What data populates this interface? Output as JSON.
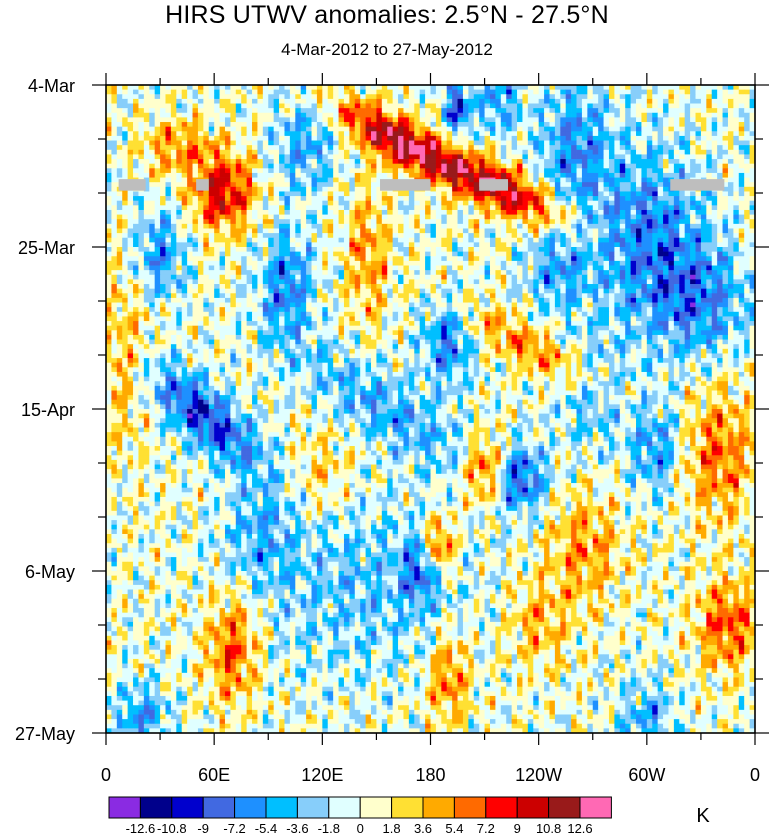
{
  "chart_data": {
    "type": "heatmap",
    "title": "HIRS UTWV anomalies: 2.5°N - 27.5°N",
    "subtitle": "4-Mar-2012 to 27-May-2012",
    "x_ticks": [
      "0",
      "60E",
      "120E",
      "180",
      "120W",
      "60W",
      "0"
    ],
    "x_tick_values": [
      0,
      60,
      120,
      180,
      240,
      300,
      360
    ],
    "xlim": [
      0,
      360
    ],
    "y_ticks": [
      "4-Mar",
      "25-Mar",
      "15-Apr",
      "6-May",
      "27-May"
    ],
    "y_tick_values": [
      0,
      21,
      42,
      63,
      84
    ],
    "ylim": [
      0,
      84
    ],
    "y_direction": "time increases downward",
    "units": "K",
    "colorbar": {
      "levels": [
        -12.6,
        -10.8,
        -9,
        -7.2,
        -5.4,
        -3.6,
        -1.8,
        0,
        1.8,
        3.6,
        5.4,
        7.2,
        9,
        10.8,
        12.6
      ],
      "level_labels": [
        "-12.6",
        "-10.8",
        "-9",
        "-7.2",
        "-5.4",
        "-3.6",
        "-1.8",
        "0",
        "1.8",
        "3.6",
        "5.4",
        "7.2",
        "9",
        "10.8",
        "12.6"
      ],
      "colors": [
        "#8a2be2",
        "#00008b",
        "#0000cd",
        "#4169e1",
        "#1e90ff",
        "#00bfff",
        "#87cefa",
        "#e0ffff",
        "#ffffcc",
        "#ffe033",
        "#ffaa00",
        "#ff6a00",
        "#ff0000",
        "#cc0000",
        "#991a1a",
        "#ff69b4"
      ]
    },
    "missing_color": "#bebebe",
    "features": [
      {
        "lon": 65,
        "day": 14,
        "amp": 9.5,
        "sx": 12,
        "sy": 3.5,
        "tilt": 0
      },
      {
        "lon": 40,
        "day": 8,
        "amp": 5,
        "sx": 14,
        "sy": 2.5,
        "tilt": 0
      },
      {
        "lon": 160,
        "day": 7,
        "amp": 11,
        "sx": 11,
        "sy": 2,
        "tilt": -0.55
      },
      {
        "lon": 215,
        "day": 13,
        "amp": 11.5,
        "sx": 14,
        "sy": 2,
        "tilt": -0.45
      },
      {
        "lon": 195,
        "day": 3,
        "amp": -9,
        "sx": 5,
        "sy": 2.5,
        "tilt": 0
      },
      {
        "lon": 218,
        "day": 2,
        "amp": -5.5,
        "sx": 9,
        "sy": 3,
        "tilt": 0
      },
      {
        "lon": 210,
        "day": 50,
        "amp": 8,
        "sx": 8,
        "sy": 3,
        "tilt": 0
      },
      {
        "lon": 235,
        "day": 34,
        "amp": 5.5,
        "sx": 16,
        "sy": 2,
        "tilt": -0.5
      },
      {
        "lon": 55,
        "day": 43,
        "amp": -9.5,
        "sx": 12,
        "sy": 2.5,
        "tilt": -0.8
      },
      {
        "lon": 100,
        "day": 26,
        "amp": -7,
        "sx": 10,
        "sy": 5,
        "tilt": 0
      },
      {
        "lon": 30,
        "day": 22,
        "amp": -6,
        "sx": 10,
        "sy": 4,
        "tilt": 0
      },
      {
        "lon": 300,
        "day": 20,
        "amp": -7,
        "sx": 22,
        "sy": 8,
        "tilt": 0
      },
      {
        "lon": 330,
        "day": 28,
        "amp": -6,
        "sx": 18,
        "sy": 5,
        "tilt": 0
      },
      {
        "lon": 260,
        "day": 8,
        "amp": -6,
        "sx": 14,
        "sy": 6,
        "tilt": 0
      },
      {
        "lon": 230,
        "day": 51,
        "amp": -8,
        "sx": 10,
        "sy": 3,
        "tilt": 0
      },
      {
        "lon": 190,
        "day": 33,
        "amp": -7,
        "sx": 10,
        "sy": 4,
        "tilt": 0
      },
      {
        "lon": 155,
        "day": 42,
        "amp": -5,
        "sx": 18,
        "sy": 3,
        "tilt": -0.6
      },
      {
        "lon": 185,
        "day": 60,
        "amp": 9,
        "sx": 6,
        "sy": 2.5,
        "tilt": 0
      },
      {
        "lon": 175,
        "day": 63,
        "amp": -6,
        "sx": 8,
        "sy": 3,
        "tilt": 0
      },
      {
        "lon": 140,
        "day": 65,
        "amp": -3.5,
        "sx": 40,
        "sy": 8,
        "tilt": 0
      },
      {
        "lon": 70,
        "day": 73,
        "amp": 7,
        "sx": 10,
        "sy": 5,
        "tilt": 0
      },
      {
        "lon": 190,
        "day": 77,
        "amp": 6,
        "sx": 8,
        "sy": 4,
        "tilt": 0
      },
      {
        "lon": 305,
        "day": 47,
        "amp": -6,
        "sx": 10,
        "sy": 4,
        "tilt": 0
      },
      {
        "lon": 340,
        "day": 48,
        "amp": 6,
        "sx": 14,
        "sy": 6,
        "tilt": 0
      },
      {
        "lon": 345,
        "day": 70,
        "amp": 7,
        "sx": 12,
        "sy": 4,
        "tilt": 0
      },
      {
        "lon": 300,
        "day": 82,
        "amp": -5,
        "sx": 10,
        "sy": 3,
        "tilt": 0
      },
      {
        "lon": 20,
        "day": 82,
        "amp": -6,
        "sx": 10,
        "sy": 3,
        "tilt": 0
      },
      {
        "lon": 110,
        "day": 8,
        "amp": -5,
        "sx": 12,
        "sy": 4,
        "tilt": 0
      },
      {
        "lon": 145,
        "day": 22,
        "amp": 5,
        "sx": 8,
        "sy": 6,
        "tilt": 0
      },
      {
        "lon": 265,
        "day": 60,
        "amp": 5,
        "sx": 14,
        "sy": 5,
        "tilt": 0
      },
      {
        "lon": 10,
        "day": 35,
        "amp": 4,
        "sx": 10,
        "sy": 8,
        "tilt": 0
      },
      {
        "lon": 250,
        "day": 24,
        "amp": -5,
        "sx": 12,
        "sy": 4,
        "tilt": 0
      },
      {
        "lon": 270,
        "day": 40,
        "amp": -4,
        "sx": 14,
        "sy": 5,
        "tilt": 0
      },
      {
        "lon": 85,
        "day": 58,
        "amp": -4,
        "sx": 14,
        "sy": 5,
        "tilt": 0
      },
      {
        "lon": 120,
        "day": 50,
        "amp": 3,
        "sx": 12,
        "sy": 4,
        "tilt": 0
      },
      {
        "lon": 240,
        "day": 70,
        "amp": 4,
        "sx": 12,
        "sy": 4,
        "tilt": 0
      }
    ],
    "missing_regions": [
      {
        "lon0": 7,
        "lon1": 22,
        "day0": 12.2,
        "day1": 13.7
      },
      {
        "lon0": 50,
        "lon1": 57,
        "day0": 12.2,
        "day1": 13.7
      },
      {
        "lon0": 152,
        "lon1": 180,
        "day0": 12.2,
        "day1": 13.7
      },
      {
        "lon0": 207,
        "lon1": 223,
        "day0": 12.2,
        "day1": 13.7
      },
      {
        "lon0": 313,
        "lon1": 343,
        "day0": 12.2,
        "day1": 13.7
      }
    ]
  }
}
